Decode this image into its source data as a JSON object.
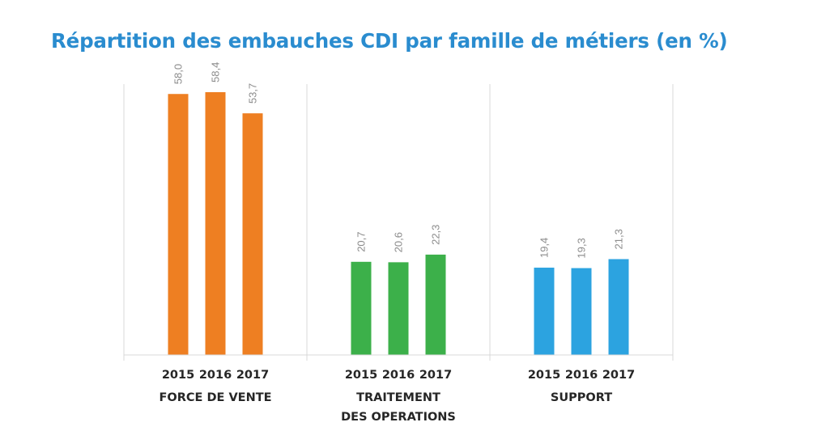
{
  "chart_data": {
    "type": "bar",
    "title": "Répartition des embauches CDI par famille de métiers (en %)",
    "years": [
      "2015",
      "2016",
      "2017"
    ],
    "groups": [
      {
        "name_lines": [
          "FORCE DE VENTE"
        ],
        "color": "#ee7f22",
        "values": [
          58.0,
          58.4,
          53.7
        ],
        "labels": [
          "58,0",
          "58,4",
          "53,7"
        ]
      },
      {
        "name_lines": [
          "TRAITEMENT",
          "DES OPERATIONS"
        ],
        "color": "#3cb04a",
        "values": [
          20.7,
          20.6,
          22.3
        ],
        "labels": [
          "20,7",
          "20,6",
          "22,3"
        ]
      },
      {
        "name_lines": [
          "SUPPORT"
        ],
        "color": "#2ca3e0",
        "values": [
          19.4,
          19.3,
          21.3
        ],
        "labels": [
          "19,4",
          "19,3",
          "21,3"
        ]
      }
    ],
    "ylim": [
      0,
      60
    ],
    "grid": false
  }
}
